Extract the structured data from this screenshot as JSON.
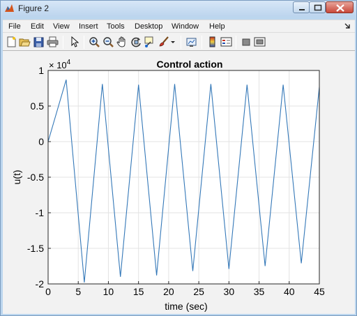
{
  "window": {
    "title": "Figure 2",
    "icons": {
      "app": "matlab-figure-icon",
      "minimize": "minimize-icon",
      "maximize": "maximize-icon",
      "close": "close-icon"
    }
  },
  "menubar": {
    "items": [
      "File",
      "Edit",
      "View",
      "Insert",
      "Tools",
      "Desktop",
      "Window",
      "Help"
    ],
    "overflow_icon": "dock-arrow-icon"
  },
  "toolbar": {
    "buttons": [
      "new-figure-icon",
      "open-file-icon",
      "save-icon",
      "print-icon",
      "edit-plot-arrow-icon",
      "zoom-in-icon",
      "zoom-out-icon",
      "pan-hand-icon",
      "rotate-3d-icon",
      "data-cursor-icon",
      "brush-icon",
      "link-plot-icon",
      "insert-colorbar-icon",
      "insert-legend-icon",
      "hide-plot-tools-icon",
      "show-plot-tools-icon"
    ]
  },
  "colors": {
    "line": "#3478b8",
    "titlebar": "#bdd5ee",
    "background": "#f2f2f2"
  },
  "chart_data": {
    "type": "line",
    "title": "Control action",
    "xlabel": "time (sec)",
    "ylabel": "u(t)",
    "exponent_label": "× 10",
    "exponent_power": "4",
    "xlim": [
      0,
      45
    ],
    "ylim": [
      -2,
      1
    ],
    "xticks": [
      "0",
      "5",
      "10",
      "15",
      "20",
      "25",
      "30",
      "35",
      "40",
      "45"
    ],
    "yticks": [
      "1",
      "0.5",
      "0",
      "-0.5",
      "-1",
      "-1.5",
      "-2"
    ],
    "grid": true,
    "series": [
      {
        "x": [
          0,
          3,
          6,
          9,
          12,
          15,
          18,
          21,
          24,
          27,
          30,
          33,
          36,
          39,
          42,
          45
        ],
        "values": [
          0,
          8700,
          -19800,
          8100,
          -19000,
          8000,
          -18800,
          8100,
          -18200,
          8100,
          -17900,
          8000,
          -17500,
          8000,
          -17100,
          7700
        ]
      }
    ]
  }
}
